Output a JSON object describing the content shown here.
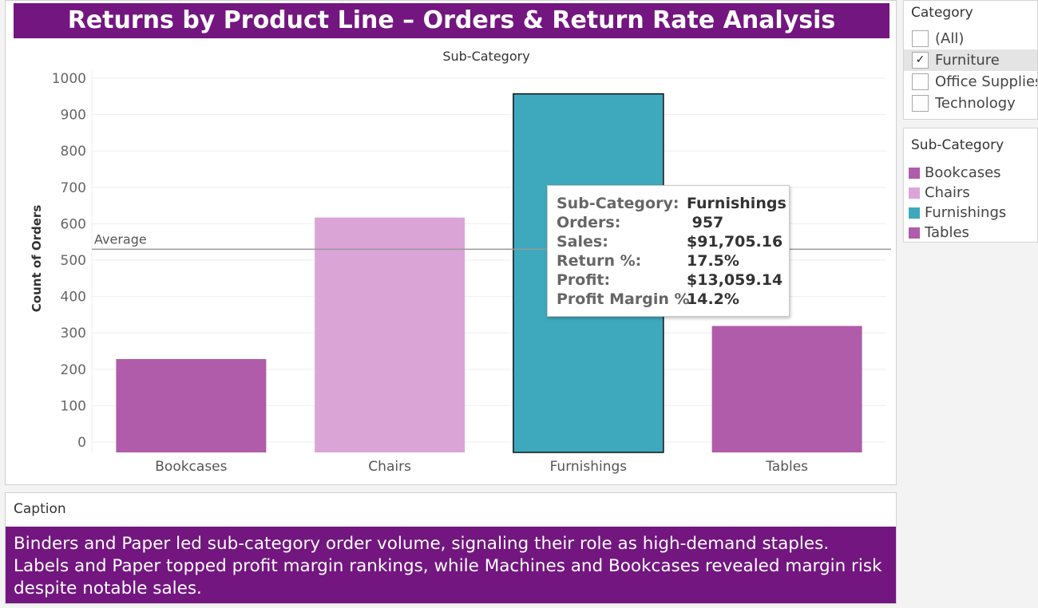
{
  "dashboard": {
    "title": "Returns by Product Line – Orders & Return Rate Analysis"
  },
  "colors": {
    "title_bg": "#731680",
    "caption_bg": "#731680",
    "bookcases": "#b05cab",
    "chairs": "#dba4d7",
    "furnishings": "#3ea9bd",
    "tables": "#b05cab",
    "average_line": "#999999"
  },
  "chart_data": {
    "type": "bar",
    "title": "",
    "column_header": "Sub-Category",
    "ylabel": "Count of Orders",
    "xlabel": "",
    "categories": [
      "Bookcases",
      "Chairs",
      "Furnishings",
      "Tables"
    ],
    "values": [
      228,
      617,
      957,
      319
    ],
    "colors": [
      "#b05cab",
      "#dba4d7",
      "#3ea9bd",
      "#b05cab"
    ],
    "highlighted": "Furnishings",
    "ylim": [
      0,
      1000
    ],
    "yticks": [
      0,
      100,
      200,
      300,
      400,
      500,
      600,
      700,
      800,
      900,
      1000
    ],
    "reference_line": {
      "label": "Average",
      "value": 530
    },
    "grid": true
  },
  "tooltip": {
    "rows": [
      {
        "key": "Sub-Category:",
        "value": "Furnishings"
      },
      {
        "key": "Orders:",
        "value": " 957"
      },
      {
        "key": "Sales:",
        "value": "$91,705.16"
      },
      {
        "key": "Return %:",
        "value": "17.5%"
      },
      {
        "key": "Profit:",
        "value": "$13,059.14"
      },
      {
        "key": "Profit Margin %:",
        "value": "14.2%"
      }
    ]
  },
  "category_filter": {
    "title": "Category",
    "options": [
      {
        "label": "(All)",
        "checked": false
      },
      {
        "label": "Furniture",
        "checked": true
      },
      {
        "label": "Office Supplies",
        "checked": false
      },
      {
        "label": "Technology",
        "checked": false
      }
    ]
  },
  "subcategory_legend": {
    "title": "Sub-Category",
    "items": [
      {
        "label": "Bookcases",
        "color": "#b05cab"
      },
      {
        "label": "Chairs",
        "color": "#dba4d7"
      },
      {
        "label": "Furnishings",
        "color": "#3ea9bd"
      },
      {
        "label": "Tables",
        "color": "#b05cab"
      }
    ]
  },
  "caption": {
    "header": "Caption",
    "lines": [
      "Binders and Paper led sub-category order volume, signaling their role as high-demand staples.",
      "Labels and Paper topped profit margin rankings, while Machines and Bookcases revealed margin risk despite notable sales."
    ]
  }
}
